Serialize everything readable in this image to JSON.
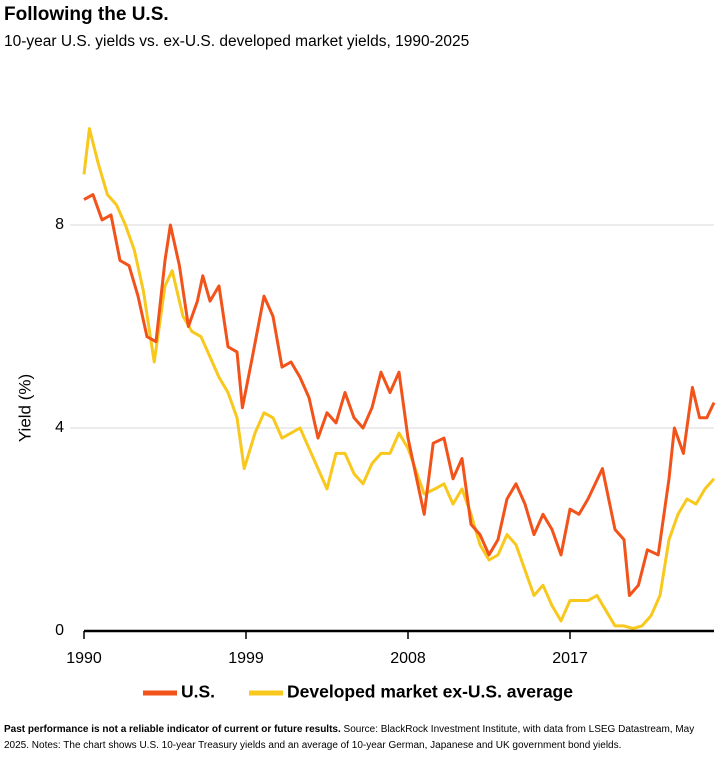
{
  "chart_data": {
    "type": "line",
    "title": "Following the U.S.",
    "subtitle": "10-year U.S. yields vs. ex-U.S. developed market yields, 1990-2025",
    "y_label": "Yield (%)",
    "footnote_bold": "Past performance is not a reliable indicator of current or future results.",
    "footnote": "Source: BlackRock Investment Institute, with data from LSEG Datastream, May 2025. Notes: The chart shows U.S. 10-year Treasury yields and an average of 10-year German, Japanese and UK government bond yields.",
    "xlim": [
      1990,
      2025
    ],
    "xticks": [
      1990,
      1999,
      2008,
      2017
    ],
    "ylim": [
      0,
      10
    ],
    "yticks": [
      0,
      4,
      8
    ],
    "grid": true,
    "series": [
      {
        "name": "U.S.",
        "color": "#f2531a",
        "x": [
          1990,
          1990.5,
          1991,
          1991.5,
          1992,
          1992.5,
          1993,
          1993.5,
          1994,
          1994.5,
          1994.8,
          1995.3,
          1995.8,
          1996.3,
          1996.6,
          1997,
          1997.5,
          1998,
          1998.5,
          1998.8,
          1999.3,
          2000,
          2000.5,
          2001,
          2001.5,
          2002,
          2002.5,
          2003,
          2003.5,
          2004,
          2004.5,
          2005,
          2005.5,
          2006,
          2006.5,
          2007,
          2007.5,
          2008,
          2008.9,
          2009.4,
          2010,
          2010.5,
          2011,
          2011.5,
          2012,
          2012.5,
          2013,
          2013.5,
          2014,
          2014.5,
          2015,
          2015.5,
          2016,
          2016.5,
          2017,
          2017.5,
          2018,
          2018.8,
          2019.5,
          2020,
          2020.3,
          2020.8,
          2021.3,
          2021.9,
          2022.5,
          2022.8,
          2023.3,
          2023.8,
          2024.2,
          2024.6,
          2025
        ],
        "values": [
          8.5,
          8.6,
          8.1,
          8.2,
          7.3,
          7.2,
          6.6,
          5.8,
          5.7,
          7.3,
          8.0,
          7.2,
          6.0,
          6.5,
          7.0,
          6.5,
          6.8,
          5.6,
          5.5,
          4.4,
          5.3,
          6.6,
          6.2,
          5.2,
          5.3,
          5.0,
          4.6,
          3.8,
          4.3,
          4.1,
          4.7,
          4.2,
          4.0,
          4.4,
          5.1,
          4.7,
          5.1,
          3.8,
          2.3,
          3.7,
          3.8,
          3.0,
          3.4,
          2.1,
          1.9,
          1.5,
          1.8,
          2.6,
          2.9,
          2.5,
          1.9,
          2.3,
          2.0,
          1.5,
          2.4,
          2.3,
          2.6,
          3.2,
          2.0,
          1.8,
          0.7,
          0.9,
          1.6,
          1.5,
          3.0,
          4.0,
          3.5,
          4.8,
          4.2,
          4.2,
          4.5
        ]
      },
      {
        "name": "Developed market ex-U.S. average",
        "color": "#f8c81d",
        "x": [
          1990,
          1990.3,
          1990.8,
          1991.3,
          1991.8,
          1992.3,
          1992.8,
          1993.3,
          1993.9,
          1994.5,
          1994.9,
          1995.5,
          1996,
          1996.5,
          1997,
          1997.5,
          1998,
          1998.5,
          1998.9,
          1999.5,
          2000,
          2000.5,
          2001,
          2001.5,
          2002,
          2002.5,
          2003,
          2003.5,
          2004,
          2004.5,
          2005,
          2005.5,
          2006,
          2006.5,
          2007,
          2007.5,
          2008,
          2008.9,
          2009.5,
          2010,
          2010.5,
          2011,
          2011.5,
          2012,
          2012.5,
          2013,
          2013.5,
          2014,
          2014.5,
          2015,
          2015.5,
          2016,
          2016.5,
          2017,
          2017.5,
          2018,
          2018.5,
          2019,
          2019.5,
          2020,
          2020.5,
          2021,
          2021.5,
          2022,
          2022.5,
          2023,
          2023.5,
          2024,
          2024.5,
          2025
        ],
        "values": [
          9.0,
          9.9,
          9.2,
          8.6,
          8.4,
          8.0,
          7.5,
          6.7,
          5.3,
          6.8,
          7.1,
          6.2,
          5.9,
          5.8,
          5.4,
          5.0,
          4.7,
          4.2,
          3.2,
          3.9,
          4.3,
          4.2,
          3.8,
          3.9,
          4.0,
          3.6,
          3.2,
          2.8,
          3.5,
          3.5,
          3.1,
          2.9,
          3.3,
          3.5,
          3.5,
          3.9,
          3.6,
          2.7,
          2.8,
          2.9,
          2.5,
          2.8,
          2.3,
          1.7,
          1.4,
          1.5,
          1.9,
          1.7,
          1.2,
          0.7,
          0.9,
          0.5,
          0.2,
          0.6,
          0.6,
          0.6,
          0.7,
          0.4,
          0.1,
          0.1,
          0.05,
          0.1,
          0.3,
          0.7,
          1.8,
          2.3,
          2.6,
          2.5,
          2.8,
          3.0
        ]
      }
    ]
  }
}
